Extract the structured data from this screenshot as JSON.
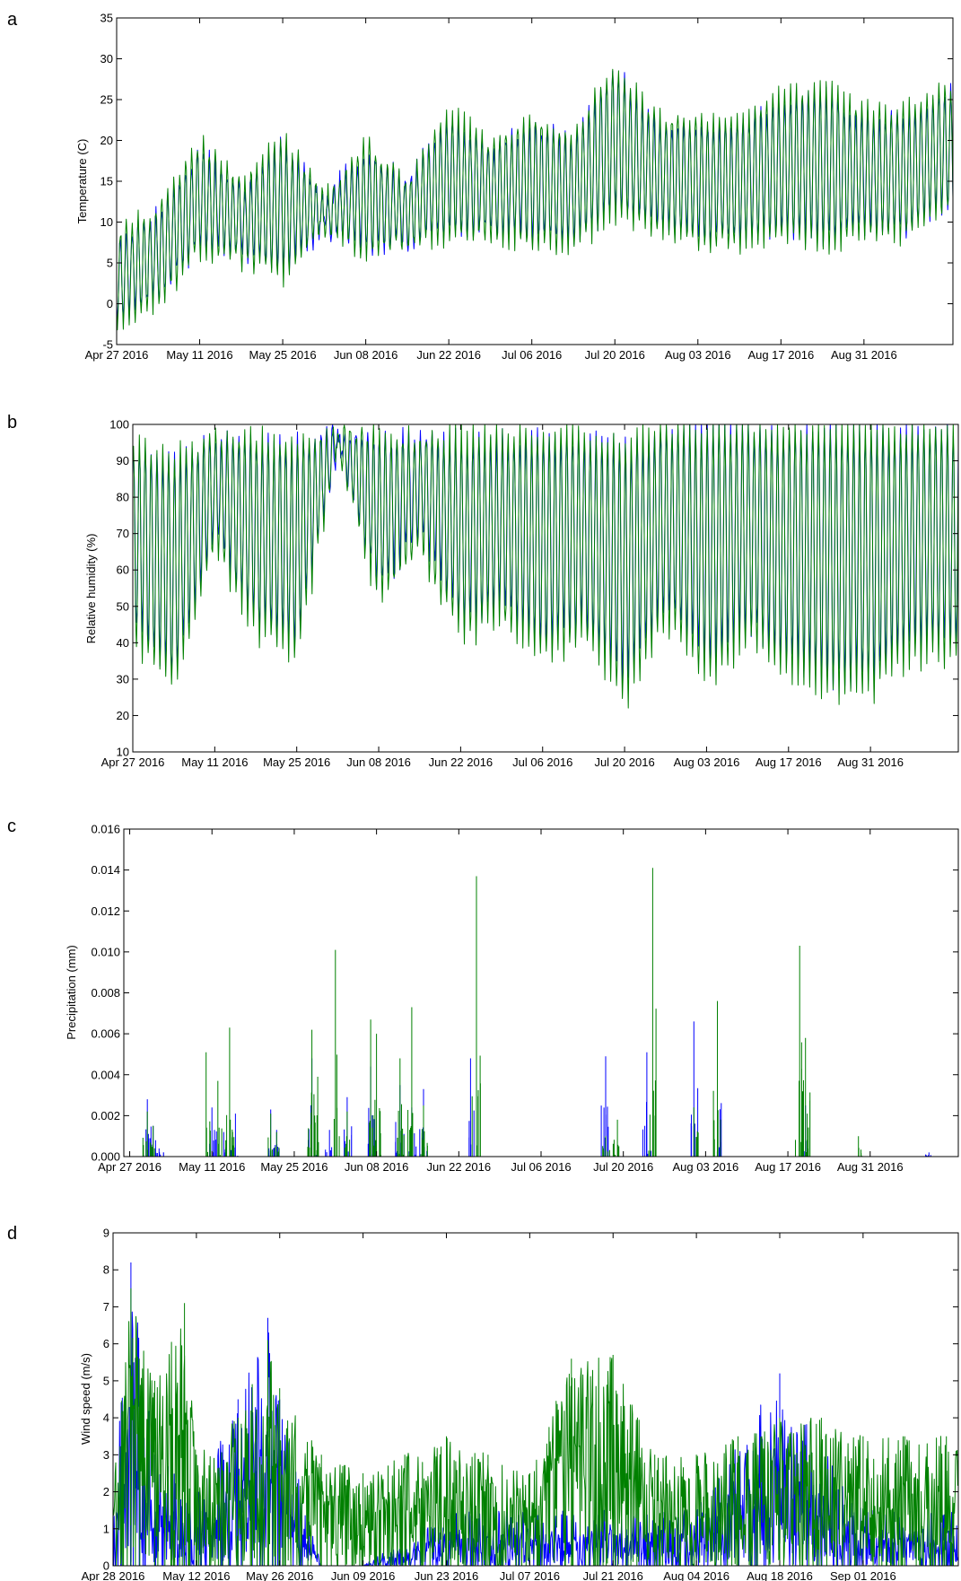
{
  "figure": {
    "panels": [
      {
        "panel_label": "a",
        "chart_data": {
          "type": "line",
          "title": "",
          "xlabel": "",
          "ylabel": "Temperature (C)",
          "ylim": [
            -5,
            35
          ],
          "yticks": [
            -5,
            0,
            5,
            10,
            15,
            20,
            25,
            30,
            35
          ],
          "xlim": [
            "2016-04-27",
            "2016-09-15"
          ],
          "xticks": [
            {
              "date": "2016-04-27",
              "label": "Apr 27 2016"
            },
            {
              "date": "2016-05-11",
              "label": "May 11 2016"
            },
            {
              "date": "2016-05-25",
              "label": "May 25 2016"
            },
            {
              "date": "2016-06-08",
              "label": "Jun 08 2016"
            },
            {
              "date": "2016-06-22",
              "label": "Jun 22 2016"
            },
            {
              "date": "2016-07-06",
              "label": "Jul 06 2016"
            },
            {
              "date": "2016-07-20",
              "label": "Jul 20 2016"
            },
            {
              "date": "2016-08-03",
              "label": "Aug 03 2016"
            },
            {
              "date": "2016-08-17",
              "label": "Aug 17 2016"
            },
            {
              "date": "2016-08-31",
              "label": "Aug 31 2016"
            }
          ],
          "grid": false,
          "legend": "none",
          "series_colors": [
            "#0000ff",
            "#008000"
          ],
          "series": [
            {
              "color": "#0000ff",
              "x": [
                "2016-04-27",
                "2016-05-04",
                "2016-05-11",
                "2016-05-18",
                "2016-05-25",
                "2016-06-01",
                "2016-06-08",
                "2016-06-15",
                "2016-06-22",
                "2016-06-29",
                "2016-07-06",
                "2016-07-13",
                "2016-07-20",
                "2016-07-27",
                "2016-08-03",
                "2016-08-10",
                "2016-08-17",
                "2016-08-24",
                "2016-08-31",
                "2016-09-07",
                "2016-09-14"
              ],
              "daily_mean": [
                3,
                6,
                13,
                10,
                12,
                11,
                13,
                11,
                16,
                14,
                15,
                14,
                20,
                16,
                15,
                15,
                17,
                17,
                16,
                16,
                19
              ],
              "daily_amplitude": [
                5,
                5,
                6,
                4,
                8,
                2,
                6,
                4,
                7,
                5,
                7,
                6,
                9,
                6,
                7,
                7,
                8,
                9,
                7,
                7,
                7
              ]
            },
            {
              "color": "#008000",
              "x": [
                "2016-04-27",
                "2016-05-04",
                "2016-05-11",
                "2016-05-18",
                "2016-05-25",
                "2016-06-01",
                "2016-06-08",
                "2016-06-15",
                "2016-06-22",
                "2016-06-29",
                "2016-07-06",
                "2016-07-13",
                "2016-07-20",
                "2016-07-27",
                "2016-08-03",
                "2016-08-10",
                "2016-08-17",
                "2016-08-24",
                "2016-08-31",
                "2016-09-07",
                "2016-09-14"
              ],
              "daily_mean": [
                3,
                6,
                13,
                10,
                12,
                11,
                13,
                11,
                16,
                14,
                15,
                14,
                20,
                16,
                15,
                15,
                17,
                17,
                16,
                16,
                19
              ],
              "daily_amplitude": [
                6,
                6,
                7,
                5,
                9,
                2,
                7,
                4,
                8,
                6,
                8,
                7,
                10,
                7,
                8,
                8,
                9,
                10,
                8,
                8,
                8
              ]
            }
          ]
        }
      },
      {
        "panel_label": "b",
        "chart_data": {
          "type": "line",
          "title": "",
          "xlabel": "",
          "ylabel": "Relative humidity (%)",
          "ylim": [
            10,
            100
          ],
          "yticks": [
            10,
            20,
            30,
            40,
            50,
            60,
            70,
            80,
            90,
            100
          ],
          "xlim": [
            "2016-04-27",
            "2016-09-15"
          ],
          "xticks": [
            {
              "date": "2016-04-27",
              "label": "Apr 27 2016"
            },
            {
              "date": "2016-05-11",
              "label": "May 11 2016"
            },
            {
              "date": "2016-05-25",
              "label": "May 25 2016"
            },
            {
              "date": "2016-06-08",
              "label": "Jun 08 2016"
            },
            {
              "date": "2016-06-22",
              "label": "Jun 22 2016"
            },
            {
              "date": "2016-07-06",
              "label": "Jul 06 2016"
            },
            {
              "date": "2016-07-20",
              "label": "Jul 20 2016"
            },
            {
              "date": "2016-08-03",
              "label": "Aug 03 2016"
            },
            {
              "date": "2016-08-17",
              "label": "Aug 17 2016"
            },
            {
              "date": "2016-08-31",
              "label": "Aug 31 2016"
            }
          ],
          "grid": false,
          "legend": "none",
          "series_colors": [
            "#0000ff",
            "#008000"
          ],
          "series": [
            {
              "color": "#0000ff",
              "x": [
                "2016-04-27",
                "2016-05-04",
                "2016-05-11",
                "2016-05-18",
                "2016-05-25",
                "2016-06-01",
                "2016-06-08",
                "2016-06-15",
                "2016-06-22",
                "2016-06-29",
                "2016-07-06",
                "2016-07-13",
                "2016-07-20",
                "2016-07-27",
                "2016-08-03",
                "2016-08-10",
                "2016-08-17",
                "2016-08-24",
                "2016-08-31",
                "2016-09-07",
                "2016-09-14"
              ],
              "daily_max": [
                95,
                90,
                96,
                96,
                95,
                98,
                97,
                96,
                96,
                96,
                97,
                96,
                95,
                98,
                99,
                99,
                99,
                99,
                99,
                98,
                99
              ],
              "daily_min": [
                45,
                30,
                70,
                45,
                40,
                93,
                55,
                70,
                45,
                50,
                40,
                45,
                30,
                50,
                35,
                45,
                35,
                30,
                30,
                40,
                40
              ]
            },
            {
              "color": "#008000",
              "x": [
                "2016-04-27",
                "2016-05-04",
                "2016-05-11",
                "2016-05-18",
                "2016-05-25",
                "2016-06-01",
                "2016-06-08",
                "2016-06-15",
                "2016-06-22",
                "2016-06-29",
                "2016-07-06",
                "2016-07-13",
                "2016-07-20",
                "2016-07-27",
                "2016-08-03",
                "2016-08-10",
                "2016-08-17",
                "2016-08-24",
                "2016-08-31",
                "2016-09-07",
                "2016-09-14"
              ],
              "daily_max": [
                96,
                92,
                97,
                97,
                96,
                99,
                98,
                97,
                99,
                99,
                99,
                98,
                97,
                100,
                100,
                100,
                100,
                100,
                100,
                100,
                100
              ],
              "daily_min": [
                40,
                25,
                65,
                42,
                35,
                92,
                50,
                65,
                40,
                45,
                35,
                40,
                22,
                45,
                28,
                40,
                30,
                25,
                25,
                35,
                35
              ]
            }
          ]
        }
      },
      {
        "panel_label": "c",
        "chart_data": {
          "type": "line",
          "title": "",
          "xlabel": "",
          "ylabel": "Precipitation (mm)",
          "ylim": [
            0,
            0.016
          ],
          "yticks": [
            0.0,
            0.002,
            0.004,
            0.006,
            0.008,
            0.01,
            0.012,
            0.014,
            0.016
          ],
          "ytick_labels": [
            "0.000",
            "0.002",
            "0.004",
            "0.006",
            "0.008",
            "0.010",
            "0.012",
            "0.014",
            "0.016"
          ],
          "xlim": [
            "2016-04-26",
            "2016-09-15"
          ],
          "xticks": [
            {
              "date": "2016-04-27",
              "label": "Apr 27 2016"
            },
            {
              "date": "2016-05-11",
              "label": "May 11 2016"
            },
            {
              "date": "2016-05-25",
              "label": "May 25 2016"
            },
            {
              "date": "2016-06-08",
              "label": "Jun 08 2016"
            },
            {
              "date": "2016-06-22",
              "label": "Jun 22 2016"
            },
            {
              "date": "2016-07-06",
              "label": "Jul 06 2016"
            },
            {
              "date": "2016-07-20",
              "label": "Jul 20 2016"
            },
            {
              "date": "2016-08-03",
              "label": "Aug 03 2016"
            },
            {
              "date": "2016-08-17",
              "label": "Aug 17 2016"
            },
            {
              "date": "2016-08-31",
              "label": "Aug 31 2016"
            }
          ],
          "grid": false,
          "legend": "none",
          "series_colors": [
            "#0000ff",
            "#008000"
          ],
          "series": [
            {
              "color": "#0000ff",
              "x": [
                "2016-04-30",
                "2016-05-01",
                "2016-05-02",
                "2016-05-11",
                "2016-05-13",
                "2016-05-15",
                "2016-05-21",
                "2016-05-22",
                "2016-05-28",
                "2016-05-31",
                "2016-06-03",
                "2016-06-07",
                "2016-06-12",
                "2016-06-14",
                "2016-06-16",
                "2016-06-24",
                "2016-07-17",
                "2016-07-24",
                "2016-08-01",
                "2016-08-05",
                "2016-08-20",
                "2016-09-10"
              ],
              "values": [
                0.0028,
                0.0015,
                0.0004,
                0.0024,
                0.0012,
                0.0021,
                0.0023,
                0.0013,
                0.0048,
                0.0013,
                0.0029,
                0.0044,
                0.0035,
                0.0024,
                0.0033,
                0.0048,
                0.0049,
                0.0051,
                0.0066,
                0.0062,
                0.0025,
                0.0002
              ]
            },
            {
              "color": "#008000",
              "x": [
                "2016-04-30",
                "2016-05-01",
                "2016-05-10",
                "2016-05-12",
                "2016-05-14",
                "2016-05-21",
                "2016-05-22",
                "2016-05-28",
                "2016-05-29",
                "2016-06-01",
                "2016-06-03",
                "2016-06-07",
                "2016-06-08",
                "2016-06-12",
                "2016-06-14",
                "2016-06-16",
                "2016-06-25",
                "2016-07-17",
                "2016-07-19",
                "2016-07-25",
                "2016-08-01",
                "2016-08-05",
                "2016-08-19",
                "2016-08-20",
                "2016-08-29"
              ],
              "values": [
                0.0022,
                0.0015,
                0.0051,
                0.0037,
                0.0063,
                0.0021,
                0.0012,
                0.0062,
                0.0039,
                0.0101,
                0.0022,
                0.0067,
                0.006,
                0.0048,
                0.0073,
                0.0025,
                0.0137,
                0.001,
                0.0018,
                0.0141,
                0.0024,
                0.0076,
                0.0103,
                0.0058,
                0.001
              ]
            }
          ]
        }
      },
      {
        "panel_label": "d",
        "chart_data": {
          "type": "line",
          "title": "",
          "xlabel": "",
          "ylabel": "Wind speed (m/s)",
          "ylim": [
            0,
            9
          ],
          "yticks": [
            0,
            1,
            2,
            3,
            4,
            5,
            6,
            7,
            8,
            9
          ],
          "xlim": [
            "2016-04-28",
            "2016-09-17"
          ],
          "xticks": [
            {
              "date": "2016-04-28",
              "label": "Apr 28 2016"
            },
            {
              "date": "2016-05-12",
              "label": "May 12 2016"
            },
            {
              "date": "2016-05-26",
              "label": "May 26 2016"
            },
            {
              "date": "2016-06-09",
              "label": "Jun 09 2016"
            },
            {
              "date": "2016-06-23",
              "label": "Jun 23 2016"
            },
            {
              "date": "2016-07-07",
              "label": "Jul 07 2016"
            },
            {
              "date": "2016-07-21",
              "label": "Jul 21 2016"
            },
            {
              "date": "2016-08-04",
              "label": "Aug 04 2016"
            },
            {
              "date": "2016-08-18",
              "label": "Aug 18 2016"
            },
            {
              "date": "2016-09-01",
              "label": "Sep 01 2016"
            }
          ],
          "grid": false,
          "legend": "none",
          "series_colors": [
            "#0000ff",
            "#008000"
          ],
          "series": [
            {
              "color": "#0000ff",
              "x": [
                "2016-04-28",
                "2016-05-01",
                "2016-05-05",
                "2016-05-12",
                "2016-05-19",
                "2016-05-24",
                "2016-05-26",
                "2016-06-02",
                "2016-06-09",
                "2016-06-23",
                "2016-07-07",
                "2016-07-21",
                "2016-08-04",
                "2016-08-18",
                "2016-09-01",
                "2016-09-15"
              ],
              "values": [
                1.5,
                8.2,
                3.0,
                2.0,
                4.5,
                6.7,
                4.5,
                0,
                0,
                1.5,
                1.5,
                1.5,
                1.5,
                5.2,
                1.5,
                1.5
              ]
            },
            {
              "color": "#008000",
              "x": [
                "2016-04-28",
                "2016-05-01",
                "2016-05-05",
                "2016-05-10",
                "2016-05-12",
                "2016-05-19",
                "2016-05-24",
                "2016-05-26",
                "2016-06-02",
                "2016-06-09",
                "2016-06-16",
                "2016-06-23",
                "2016-06-30",
                "2016-07-07",
                "2016-07-14",
                "2016-07-21",
                "2016-07-28",
                "2016-08-04",
                "2016-08-11",
                "2016-08-18",
                "2016-08-25",
                "2016-09-01",
                "2016-09-08",
                "2016-09-15"
              ],
              "values": [
                2.0,
                7.5,
                5.0,
                7.1,
                3.0,
                4.0,
                6.1,
                4.8,
                3.0,
                2.5,
                3.0,
                3.5,
                3.0,
                2.5,
                5.6,
                5.7,
                3.0,
                3.0,
                3.5,
                4.0,
                4.0,
                3.5,
                3.5,
                3.5
              ]
            }
          ]
        }
      }
    ]
  }
}
